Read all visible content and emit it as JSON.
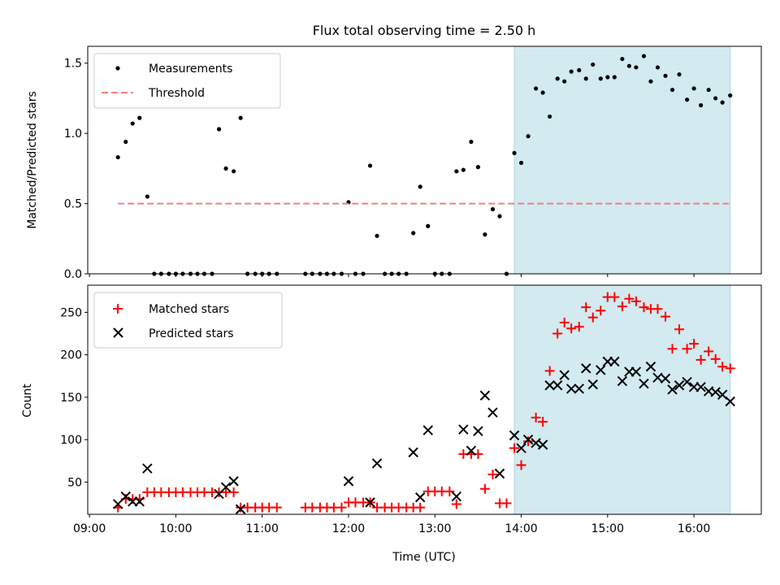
{
  "title": "Flux total observing time = 2.50 h",
  "x_axis": {
    "label": "Time (UTC)",
    "ticks": [
      "09:00",
      "10:00",
      "11:00",
      "12:00",
      "13:00",
      "14:00",
      "15:00",
      "16:00"
    ],
    "range_hours": [
      8.98,
      16.78
    ]
  },
  "chart_data": [
    {
      "type": "scatter",
      "panel": "top",
      "ylabel": "Matched/Predicted stars",
      "ylim": [
        0,
        1.62
      ],
      "yticks": [
        "0.0",
        "0.5",
        "1.0",
        "1.5"
      ],
      "xlim_hours": [
        8.98,
        16.78
      ],
      "grid": false,
      "legend": "top-left",
      "shaded_interval_hours": [
        13.92,
        16.42
      ],
      "shade_color": "#d2eaf0",
      "series": [
        {
          "name": "Measurements",
          "marker": "dot",
          "color": "#000000",
          "points": [
            [
              9.33,
              0.83
            ],
            [
              9.42,
              0.94
            ],
            [
              9.5,
              1.07
            ],
            [
              9.58,
              1.11
            ],
            [
              9.67,
              0.55
            ],
            [
              9.75,
              0
            ],
            [
              9.83,
              0
            ],
            [
              9.92,
              0
            ],
            [
              10.0,
              0
            ],
            [
              10.08,
              0
            ],
            [
              10.17,
              0
            ],
            [
              10.25,
              0
            ],
            [
              10.33,
              0
            ],
            [
              10.42,
              0
            ],
            [
              10.5,
              1.03
            ],
            [
              10.58,
              0.75
            ],
            [
              10.67,
              0.73
            ],
            [
              10.75,
              1.11
            ],
            [
              10.83,
              0
            ],
            [
              10.92,
              0
            ],
            [
              11.0,
              0
            ],
            [
              11.08,
              0
            ],
            [
              11.17,
              0
            ],
            [
              11.5,
              0
            ],
            [
              11.58,
              0
            ],
            [
              11.67,
              0
            ],
            [
              11.75,
              0
            ],
            [
              11.83,
              0
            ],
            [
              11.92,
              0
            ],
            [
              12.0,
              0.51
            ],
            [
              12.08,
              0
            ],
            [
              12.17,
              0
            ],
            [
              12.25,
              0.77
            ],
            [
              12.33,
              0.27
            ],
            [
              12.42,
              0
            ],
            [
              12.5,
              0
            ],
            [
              12.58,
              0
            ],
            [
              12.67,
              0
            ],
            [
              12.75,
              0.29
            ],
            [
              12.83,
              0.62
            ],
            [
              12.92,
              0.34
            ],
            [
              13.0,
              0
            ],
            [
              13.08,
              0
            ],
            [
              13.17,
              0
            ],
            [
              13.25,
              0.73
            ],
            [
              13.33,
              0.74
            ],
            [
              13.42,
              0.94
            ],
            [
              13.5,
              0.76
            ],
            [
              13.58,
              0.28
            ],
            [
              13.67,
              0.46
            ],
            [
              13.75,
              0.41
            ],
            [
              13.83,
              0
            ],
            [
              13.92,
              0.86
            ],
            [
              14.0,
              0.79
            ],
            [
              14.08,
              0.98
            ],
            [
              14.17,
              1.32
            ],
            [
              14.25,
              1.29
            ],
            [
              14.33,
              1.12
            ],
            [
              14.42,
              1.39
            ],
            [
              14.5,
              1.37
            ],
            [
              14.58,
              1.44
            ],
            [
              14.67,
              1.45
            ],
            [
              14.75,
              1.39
            ],
            [
              14.83,
              1.49
            ],
            [
              14.92,
              1.39
            ],
            [
              15.0,
              1.4
            ],
            [
              15.08,
              1.4
            ],
            [
              15.17,
              1.53
            ],
            [
              15.25,
              1.48
            ],
            [
              15.33,
              1.47
            ],
            [
              15.42,
              1.55
            ],
            [
              15.5,
              1.37
            ],
            [
              15.58,
              1.47
            ],
            [
              15.67,
              1.41
            ],
            [
              15.75,
              1.31
            ],
            [
              15.83,
              1.42
            ],
            [
              15.92,
              1.24
            ],
            [
              16.0,
              1.32
            ],
            [
              16.08,
              1.2
            ],
            [
              16.17,
              1.31
            ],
            [
              16.25,
              1.25
            ],
            [
              16.33,
              1.22
            ],
            [
              16.42,
              1.27
            ]
          ]
        },
        {
          "name": "Threshold",
          "marker": "dashed-line",
          "color": "#f08080",
          "points": [
            [
              9.33,
              0.5
            ],
            [
              16.42,
              0.5
            ]
          ]
        }
      ]
    },
    {
      "type": "scatter",
      "panel": "bottom",
      "ylabel": "Count",
      "ylim": [
        12,
        282
      ],
      "yticks": [
        "50",
        "100",
        "150",
        "200",
        "250"
      ],
      "xlim_hours": [
        8.98,
        16.78
      ],
      "grid": false,
      "legend": "top-left",
      "shaded_interval_hours": [
        13.92,
        16.42
      ],
      "shade_color": "#d2eaf0",
      "series": [
        {
          "name": "Matched stars",
          "marker": "plus",
          "color": "#ff0000",
          "points": [
            [
              9.33,
              20
            ],
            [
              9.42,
              30
            ],
            [
              9.5,
              30
            ],
            [
              9.58,
              30
            ],
            [
              9.67,
              38
            ],
            [
              9.75,
              38
            ],
            [
              9.83,
              38
            ],
            [
              9.92,
              38
            ],
            [
              10.0,
              38
            ],
            [
              10.08,
              38
            ],
            [
              10.17,
              38
            ],
            [
              10.25,
              38
            ],
            [
              10.33,
              38
            ],
            [
              10.42,
              38
            ],
            [
              10.5,
              38
            ],
            [
              10.58,
              38
            ],
            [
              10.67,
              38
            ],
            [
              10.75,
              20
            ],
            [
              10.83,
              20
            ],
            [
              10.92,
              20
            ],
            [
              11.0,
              20
            ],
            [
              11.08,
              20
            ],
            [
              11.17,
              20
            ],
            [
              11.5,
              20
            ],
            [
              11.58,
              20
            ],
            [
              11.67,
              20
            ],
            [
              11.75,
              20
            ],
            [
              11.83,
              20
            ],
            [
              11.92,
              20
            ],
            [
              12.0,
              26
            ],
            [
              12.08,
              26
            ],
            [
              12.17,
              26
            ],
            [
              12.25,
              26
            ],
            [
              12.33,
              20
            ],
            [
              12.42,
              20
            ],
            [
              12.5,
              20
            ],
            [
              12.58,
              20
            ],
            [
              12.67,
              20
            ],
            [
              12.75,
              20
            ],
            [
              12.83,
              20
            ],
            [
              12.92,
              39
            ],
            [
              13.0,
              39
            ],
            [
              13.08,
              39
            ],
            [
              13.17,
              39
            ],
            [
              13.25,
              24
            ],
            [
              13.33,
              83
            ],
            [
              13.42,
              83
            ],
            [
              13.5,
              83
            ],
            [
              13.58,
              42
            ],
            [
              13.67,
              59
            ],
            [
              13.75,
              25
            ],
            [
              13.83,
              25
            ],
            [
              13.92,
              90
            ],
            [
              14.0,
              70
            ],
            [
              14.08,
              98
            ],
            [
              14.17,
              126
            ],
            [
              14.25,
              121
            ],
            [
              14.33,
              181
            ],
            [
              14.42,
              225
            ],
            [
              14.5,
              238
            ],
            [
              14.58,
              231
            ],
            [
              14.67,
              233
            ],
            [
              14.75,
              256
            ],
            [
              14.83,
              244
            ],
            [
              14.92,
              252
            ],
            [
              15.0,
              268
            ],
            [
              15.08,
              268
            ],
            [
              15.17,
              257
            ],
            [
              15.25,
              266
            ],
            [
              15.33,
              263
            ],
            [
              15.42,
              256
            ],
            [
              15.5,
              254
            ],
            [
              15.58,
              254
            ],
            [
              15.67,
              245
            ],
            [
              15.75,
              207
            ],
            [
              15.83,
              230
            ],
            [
              15.92,
              207
            ],
            [
              16.0,
              213
            ],
            [
              16.08,
              194
            ],
            [
              16.17,
              204
            ],
            [
              16.25,
              195
            ],
            [
              16.33,
              186
            ],
            [
              16.42,
              184
            ]
          ]
        },
        {
          "name": "Predicted stars",
          "marker": "x",
          "color": "#000000",
          "points": [
            [
              9.33,
              24
            ],
            [
              9.42,
              33
            ],
            [
              9.5,
              27
            ],
            [
              9.58,
              27
            ],
            [
              9.67,
              66
            ],
            [
              10.5,
              36
            ],
            [
              10.58,
              44
            ],
            [
              10.67,
              51
            ],
            [
              10.75,
              18
            ],
            [
              12.0,
              51
            ],
            [
              12.25,
              26
            ],
            [
              12.33,
              72
            ],
            [
              12.75,
              85
            ],
            [
              12.83,
              32
            ],
            [
              12.92,
              111
            ],
            [
              13.25,
              33
            ],
            [
              13.33,
              112
            ],
            [
              13.42,
              87
            ],
            [
              13.5,
              110
            ],
            [
              13.58,
              152
            ],
            [
              13.67,
              132
            ],
            [
              13.75,
              60
            ],
            [
              13.92,
              105
            ],
            [
              14.0,
              90
            ],
            [
              14.08,
              100
            ],
            [
              14.17,
              96
            ],
            [
              14.25,
              94
            ],
            [
              14.33,
              164
            ],
            [
              14.42,
              164
            ],
            [
              14.5,
              176
            ],
            [
              14.58,
              160
            ],
            [
              14.67,
              160
            ],
            [
              14.75,
              184
            ],
            [
              14.83,
              165
            ],
            [
              14.92,
              182
            ],
            [
              15.0,
              192
            ],
            [
              15.08,
              192
            ],
            [
              15.17,
              169
            ],
            [
              15.25,
              180
            ],
            [
              15.33,
              180
            ],
            [
              15.42,
              166
            ],
            [
              15.5,
              186
            ],
            [
              15.58,
              173
            ],
            [
              15.67,
              172
            ],
            [
              15.75,
              159
            ],
            [
              15.83,
              164
            ],
            [
              15.92,
              168
            ],
            [
              16.0,
              162
            ],
            [
              16.08,
              162
            ],
            [
              16.17,
              157
            ],
            [
              16.25,
              156
            ],
            [
              16.33,
              153
            ],
            [
              16.42,
              145
            ]
          ]
        }
      ]
    }
  ]
}
